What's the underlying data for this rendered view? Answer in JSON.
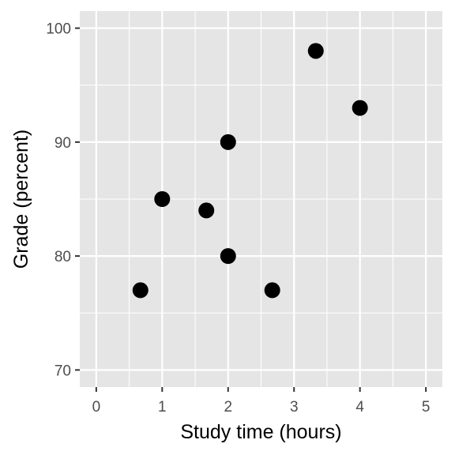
{
  "chart_data": {
    "type": "scatter",
    "title": "",
    "xlabel": "Study time (hours)",
    "ylabel": "Grade (percent)",
    "xlim": [
      -0.25,
      5.25
    ],
    "ylim": [
      68.5,
      101.5
    ],
    "x_ticks": [
      0,
      1,
      2,
      3,
      4,
      5
    ],
    "y_ticks": [
      70,
      80,
      90,
      100
    ],
    "x_tick_labels": [
      "0",
      "1",
      "2",
      "3",
      "4",
      "5"
    ],
    "y_tick_labels": [
      "70",
      "80",
      "90",
      "100"
    ],
    "grid": true,
    "series": [
      {
        "points": [
          {
            "x": 0.67,
            "y": 77
          },
          {
            "x": 1.0,
            "y": 85
          },
          {
            "x": 1.67,
            "y": 84
          },
          {
            "x": 2.0,
            "y": 90
          },
          {
            "x": 2.0,
            "y": 80
          },
          {
            "x": 2.67,
            "y": 77
          },
          {
            "x": 3.33,
            "y": 98
          },
          {
            "x": 4.0,
            "y": 93
          }
        ]
      }
    ],
    "colors": {
      "panel_background": "#e5e5e5",
      "gridline": "#ffffff",
      "point": "#000000",
      "tick_mark": "#333333"
    }
  }
}
